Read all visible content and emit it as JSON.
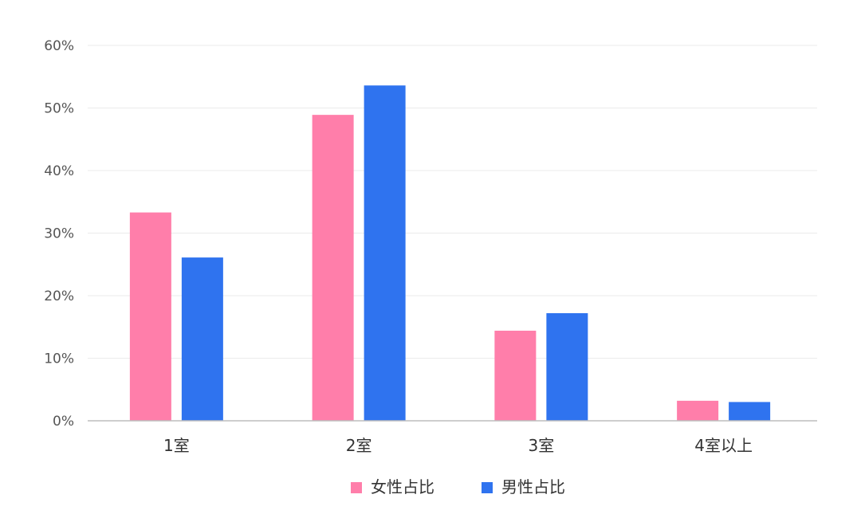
{
  "chart_data": {
    "type": "bar",
    "categories": [
      "1室",
      "2室",
      "3室",
      "4室以上"
    ],
    "series": [
      {
        "name": "女性占比",
        "color": "#ff7eaa",
        "values": [
          33.3,
          48.9,
          14.4,
          3.2
        ]
      },
      {
        "name": "男性占比",
        "color": "#2f73ef",
        "values": [
          26.1,
          53.6,
          17.2,
          3.0
        ]
      }
    ],
    "y_ticks": [
      "0%",
      "10%",
      "20%",
      "30%",
      "40%",
      "50%",
      "60%"
    ],
    "ylim": [
      0,
      60
    ],
    "grid": true,
    "legend_position": "bottom-center",
    "title": "",
    "xlabel": "",
    "ylabel": ""
  }
}
